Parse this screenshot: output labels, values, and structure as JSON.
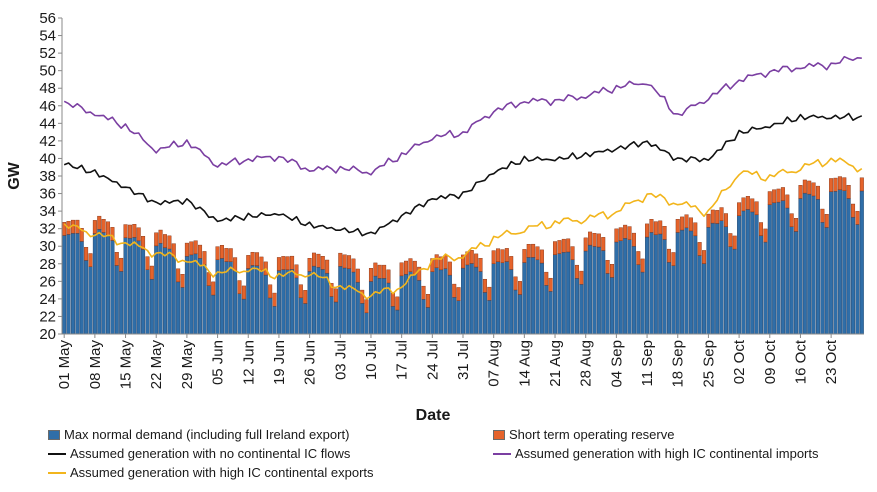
{
  "chart_data": {
    "type": "bar+line",
    "title": "",
    "xlabel": "Date",
    "ylabel": "GW",
    "ylim": [
      20,
      56
    ],
    "yticks": [
      20,
      22,
      24,
      26,
      28,
      30,
      32,
      34,
      36,
      38,
      40,
      42,
      44,
      46,
      48,
      50,
      52,
      54,
      56
    ],
    "grid": false,
    "xtick_labels": [
      "01 May",
      "08 May",
      "15 May",
      "22 May",
      "29 May",
      "05 Jun",
      "12 Jun",
      "19 Jun",
      "26 Jun",
      "03 Jul",
      "10 Jul",
      "17 Jul",
      "24 Jul",
      "31 Jul",
      "07 Aug",
      "14 Aug",
      "21 Aug",
      "28 Aug",
      "04 Sep",
      "11 Sep",
      "18 Sep",
      "25 Sep",
      "02 Oct",
      "09 Oct",
      "16 Oct",
      "23 Oct"
    ],
    "num_days": 183,
    "weekly_demand_anchors": [
      31.0,
      31.5,
      30.8,
      30.0,
      28.8,
      28.3,
      27.5,
      27.0,
      27.2,
      27.5,
      26.0,
      26.5,
      27.0,
      27.5,
      27.8,
      28.2,
      28.8,
      29.5,
      30.3,
      31.0,
      31.5,
      32.0,
      33.5,
      34.5,
      35.5,
      36.0,
      36.3
    ],
    "weekly_pattern": [
      0.0,
      0.3,
      0.3,
      0.2,
      -0.5,
      -3.0,
      -3.8
    ],
    "reserve_height_gw": 1.5,
    "series_anchors": [
      {
        "name": "Assumed generation with no continental IC flows",
        "values": [
          39.5,
          38.5,
          36.8,
          35.0,
          35.3,
          33.0,
          33.5,
          33.8,
          32.5,
          32.0,
          31.5,
          33.5,
          35.5,
          36.0,
          38.5,
          40.0,
          40.0,
          40.5,
          41.2,
          42.0,
          40.0,
          40.0,
          43.0,
          43.8,
          44.8,
          44.8,
          44.8
        ]
      },
      {
        "name": "Assumed generation with high IC continental imports",
        "values": [
          46.5,
          45.2,
          43.8,
          41.0,
          42.0,
          39.3,
          40.0,
          40.3,
          38.8,
          39.0,
          38.5,
          40.5,
          42.5,
          43.0,
          45.5,
          46.6,
          46.7,
          47.2,
          48.2,
          48.8,
          45.0,
          47.0,
          49.0,
          50.0,
          50.5,
          50.8,
          51.8
        ]
      },
      {
        "name": "Assumed generation with high IC continental exports",
        "values": [
          32.5,
          31.5,
          30.5,
          29.3,
          28.5,
          27.0,
          27.5,
          26.8,
          27.0,
          25.5,
          24.5,
          25.5,
          28.5,
          29.0,
          31.0,
          32.0,
          32.8,
          33.2,
          34.0,
          36.0,
          35.0,
          34.0,
          38.5,
          38.0,
          39.0,
          40.0,
          39.0
        ]
      }
    ],
    "series": [
      {
        "name": "Max normal demand (including full Ireland export)",
        "kind": "bar",
        "color": "#2f6ea8"
      },
      {
        "name": "Short term operating reserve",
        "kind": "bar-stacked",
        "color": "#e5632b"
      },
      {
        "name": "Assumed generation with no continental IC flows",
        "kind": "line",
        "color": "#111111"
      },
      {
        "name": "Assumed generation with high IC continental imports",
        "kind": "line",
        "color": "#7b3fa2"
      },
      {
        "name": "Assumed generation with high IC continental exports",
        "kind": "line",
        "color": "#f2b51c"
      }
    ]
  },
  "legend": {
    "demand": "Max normal demand (including full Ireland export)",
    "reserve": "Short term operating reserve",
    "no_ic": "Assumed generation with no continental IC flows",
    "imports": "Assumed generation with high IC continental imports",
    "exports": "Assumed generation with high IC continental exports"
  },
  "colors": {
    "demand": "#2f6ea8",
    "reserve": "#e5632b",
    "no_ic": "#111111",
    "imports": "#7b3fa2",
    "exports": "#f2b51c",
    "axis": "#8a8a8a"
  }
}
